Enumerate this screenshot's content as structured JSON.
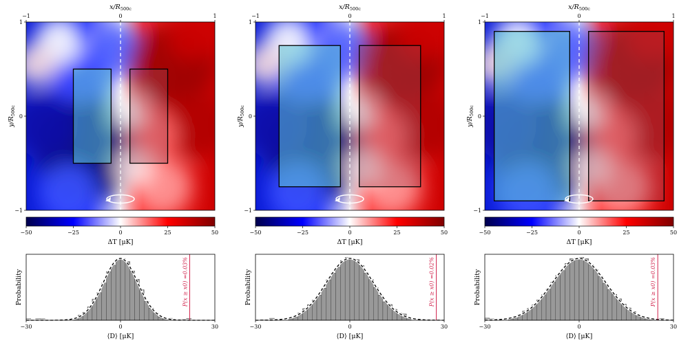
{
  "chart_data": [
    {
      "type": "heatmap",
      "panel": "left",
      "title": "",
      "top_xlabel": "x/R500c",
      "ylabel": "y/R500c",
      "top_xticks": [
        "−1",
        "0",
        "1"
      ],
      "yticks": [
        "1",
        "0",
        "−1"
      ],
      "xlim": [
        -1,
        1
      ],
      "ylim": [
        -1,
        1
      ],
      "colorbar": {
        "label": "ΔT [μK]",
        "range": [
          -50,
          50
        ],
        "ticks": [
          "−50",
          "−25",
          "0",
          "25",
          "50"
        ],
        "cmap": "seismic"
      },
      "apertures": [
        {
          "side": "negative",
          "x": [
            -0.5,
            -0.1
          ],
          "y": [
            -0.5,
            0.5
          ]
        },
        {
          "side": "positive",
          "x": [
            0.1,
            0.5
          ],
          "y": [
            -0.5,
            0.5
          ]
        }
      ],
      "dashed_axis_x": 0,
      "rotation_marker_y": -0.88
    },
    {
      "type": "heatmap",
      "panel": "middle",
      "top_xlabel": "x/R500c",
      "ylabel": "y/R500c",
      "top_xticks": [
        "−1",
        "0",
        "1"
      ],
      "yticks": [
        "1",
        "0",
        "−1"
      ],
      "xlim": [
        -1,
        1
      ],
      "ylim": [
        -1,
        1
      ],
      "colorbar": {
        "label": "ΔT [μK]",
        "range": [
          -50,
          50
        ],
        "ticks": [
          "−50",
          "−25",
          "0",
          "25",
          "50"
        ],
        "cmap": "seismic"
      },
      "apertures": [
        {
          "side": "negative",
          "x": [
            -0.75,
            -0.1
          ],
          "y": [
            -0.75,
            0.75
          ]
        },
        {
          "side": "positive",
          "x": [
            0.1,
            0.75
          ],
          "y": [
            -0.75,
            0.75
          ]
        }
      ],
      "dashed_axis_x": 0,
      "rotation_marker_y": -0.88
    },
    {
      "type": "heatmap",
      "panel": "right",
      "top_xlabel": "x/R500c",
      "ylabel": "y/R500c",
      "top_xticks": [
        "−1",
        "0",
        "1"
      ],
      "yticks": [
        "1",
        "0",
        "−1"
      ],
      "xlim": [
        -1,
        1
      ],
      "ylim": [
        -1,
        1
      ],
      "colorbar": {
        "label": "ΔT [μK]",
        "range": [
          -50,
          50
        ],
        "ticks": [
          "−50",
          "−25",
          "0",
          "25",
          "50"
        ],
        "cmap": "seismic"
      },
      "apertures": [
        {
          "side": "negative",
          "x": [
            -0.9,
            -0.1
          ],
          "y": [
            -0.9,
            0.9
          ]
        },
        {
          "side": "positive",
          "x": [
            0.1,
            0.9
          ],
          "y": [
            -0.9,
            0.9
          ]
        }
      ],
      "dashed_axis_x": 0,
      "rotation_marker_y": -0.88
    },
    {
      "type": "bar",
      "subtype": "histogram",
      "panel": "left",
      "xlabel": "⟨D⟩ [μK]",
      "ylabel": "Probability",
      "xlim": [
        -30,
        30
      ],
      "xticks": [
        "−30",
        "0",
        "30"
      ],
      "gaussian_fit": {
        "mean": 0,
        "sigma": 5.5
      },
      "observed_x0": 22,
      "annotation": "P(x ≥ x0) =0.03%"
    },
    {
      "type": "bar",
      "subtype": "histogram",
      "panel": "middle",
      "xlabel": "⟨D⟩ [μK]",
      "ylabel": "Probability",
      "xlim": [
        -30,
        30
      ],
      "xticks": [
        "−30",
        "0",
        "30"
      ],
      "gaussian_fit": {
        "mean": 0,
        "sigma": 7.5
      },
      "observed_x0": 27.5,
      "annotation": "P(x ≥ x0) =0.02%"
    },
    {
      "type": "bar",
      "subtype": "histogram",
      "panel": "right",
      "xlabel": "⟨D⟩ [μK]",
      "ylabel": "Probability",
      "xlim": [
        -30,
        30
      ],
      "xticks": [
        "−30",
        "0",
        "30"
      ],
      "gaussian_fit": {
        "mean": 0,
        "sigma": 8.5
      },
      "observed_x0": 25,
      "annotation": "P(x ≥ x0) =0.03%"
    }
  ]
}
